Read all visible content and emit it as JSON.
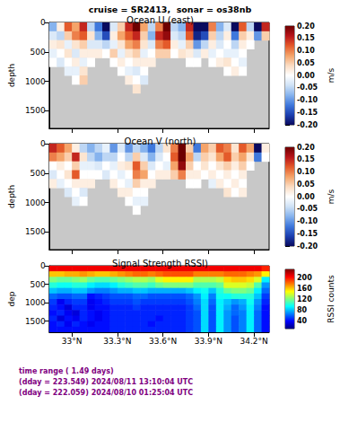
{
  "title": "cruise = SR2413,  sonar = os38nb",
  "footer": [
    "time range ( 1.49 days)",
    "(dday = 223.549) 2024/08/11 13:10:04 UTC",
    "(dday = 222.059) 2024/08/10 01:25:04 UTC"
  ],
  "chart_data": [
    {
      "type": "heatmap",
      "title": "Ocean U (east)",
      "ylabel": "depth",
      "tick_labels": "y",
      "x": [
        32.875,
        32.925,
        32.975,
        33.025,
        33.075,
        33.125,
        33.175,
        33.225,
        33.275,
        33.325,
        33.375,
        33.425,
        33.475,
        33.525,
        33.575,
        33.625,
        33.675,
        33.725,
        33.775,
        33.825,
        33.875,
        33.925,
        33.975,
        34.025,
        34.075,
        34.125,
        34.175,
        34.225,
        34.275
      ],
      "y": [
        75,
        225,
        375,
        525,
        675,
        825,
        975,
        1125
      ],
      "values": [
        [
          -0.08,
          0.02,
          0.12,
          0.08,
          0.15,
          -0.05,
          -0.12,
          -0.2,
          -0.03,
          0.05,
          0.15,
          0.2,
          0.08,
          -0.05,
          0.1,
          0.2,
          -0.05,
          -0.08,
          0.15,
          -0.2,
          -0.2,
          0.1,
          -0.08,
          -0.03,
          -0.2,
          0.12,
          -0.05,
          -0.2,
          0.15
        ],
        [
          -0.03,
          -0.05,
          0.05,
          0.1,
          0.12,
          0.03,
          -0.08,
          -0.15,
          0.02,
          0.08,
          0.12,
          0.15,
          0.05,
          -0.08,
          0.15,
          0.18,
          -0.03,
          -0.05,
          0.12,
          -0.18,
          -0.15,
          0.05,
          -0.05,
          0.02,
          -0.12,
          0.05,
          0.02,
          -0.1,
          0.05
        ],
        [
          0.02,
          0.03,
          -0.02,
          0.03,
          0.05,
          -0.03,
          -0.03,
          -0.05,
          -0.02,
          0.03,
          0.08,
          0.1,
          0.03,
          -0.03,
          0.1,
          0.12,
          0.02,
          -0.02,
          0.05,
          -0.1,
          -0.05,
          0.02,
          -0.03,
          0.0,
          -0.05,
          0.02,
          0.0,
          null,
          null
        ],
        [
          -0.02,
          0.0,
          0.03,
          -0.03,
          0.02,
          0.02,
          0.02,
          0.0,
          0.05,
          -0.02,
          0.03,
          0.05,
          -0.02,
          0.0,
          0.05,
          0.05,
          0.0,
          0.03,
          0.02,
          -0.03,
          0.02,
          -0.02,
          0.0,
          -0.02,
          -0.02,
          0.0,
          null,
          null,
          null
        ],
        [
          0.0,
          -0.03,
          0.0,
          0.02,
          -0.02,
          0.0,
          null,
          null,
          0.0,
          0.02,
          0.0,
          0.02,
          0.02,
          0.02,
          null,
          null,
          null,
          null,
          0.0,
          0.0,
          null,
          0.0,
          0.02,
          0.03,
          0.0,
          -0.02,
          null,
          null,
          null
        ],
        [
          null,
          null,
          -0.02,
          -0.02,
          0.03,
          null,
          null,
          null,
          null,
          0.0,
          -0.02,
          -0.03,
          0.0,
          null,
          null,
          null,
          null,
          null,
          null,
          null,
          null,
          null,
          null,
          0.0,
          0.02,
          0.0,
          null,
          null,
          null
        ],
        [
          null,
          null,
          null,
          0.0,
          0.05,
          null,
          null,
          null,
          null,
          null,
          0.02,
          0.0,
          -0.03,
          null,
          null,
          null,
          null,
          null,
          null,
          null,
          null,
          null,
          null,
          null,
          null,
          null,
          null,
          null,
          null
        ],
        [
          null,
          null,
          null,
          null,
          null,
          null,
          null,
          null,
          null,
          null,
          null,
          0.03,
          null,
          null,
          null,
          null,
          null,
          null,
          null,
          null,
          null,
          null,
          null,
          null,
          null,
          null,
          null,
          null,
          null
        ]
      ],
      "xlim": [
        32.85,
        34.3
      ],
      "xticks": [
        {
          "value": 33,
          "label": "33°N"
        },
        {
          "value": 33.3,
          "label": "33.3°N"
        },
        {
          "value": 33.6,
          "label": "33.6°N"
        },
        {
          "value": 33.9,
          "label": "33.9°N"
        },
        {
          "value": 34.2,
          "label": "34.2°N"
        }
      ],
      "ylim": [
        0,
        1800
      ],
      "yticks": [
        0,
        500,
        1000,
        1500
      ],
      "colorbar": {
        "label": "m/s",
        "range": [
          -0.2,
          0.2
        ],
        "ticks": [
          {
            "value": -0.2,
            "label": "-0.20"
          },
          -0.15,
          {
            "value": -0.1,
            "label": "-0.10"
          },
          -0.05,
          {
            "value": 0,
            "label": "0.00"
          },
          0.05,
          {
            "value": 0.1,
            "label": "0.10"
          },
          0.15,
          {
            "value": 0.2,
            "label": "0.20"
          }
        ]
      }
    },
    {
      "type": "heatmap",
      "title": "Ocean V (north)",
      "ylabel": "depth",
      "tick_labels": "y",
      "x": [
        32.875,
        32.925,
        32.975,
        33.025,
        33.075,
        33.125,
        33.175,
        33.225,
        33.275,
        33.325,
        33.375,
        33.425,
        33.475,
        33.525,
        33.575,
        33.625,
        33.675,
        33.725,
        33.775,
        33.825,
        33.875,
        33.925,
        33.975,
        34.025,
        34.075,
        34.125,
        34.175,
        34.225,
        34.275
      ],
      "y": [
        75,
        225,
        375,
        525,
        675,
        825,
        975,
        1125
      ],
      "values": [
        [
          0.15,
          0.12,
          0.08,
          0.02,
          -0.05,
          -0.08,
          -0.05,
          -0.02,
          -0.1,
          -0.03,
          -0.1,
          -0.05,
          -0.08,
          -0.12,
          -0.05,
          0.03,
          0.1,
          0.2,
          0.05,
          -0.12,
          0.08,
          0.05,
          0.12,
          0.1,
          0.03,
          0.12,
          0.08,
          -0.2,
          0.02
        ],
        [
          0.1,
          0.08,
          0.05,
          0.15,
          0.03,
          -0.05,
          -0.08,
          -0.05,
          -0.05,
          0.0,
          -0.05,
          0.05,
          -0.03,
          -0.08,
          -0.03,
          0.0,
          0.12,
          0.2,
          0.08,
          -0.05,
          0.05,
          0.03,
          0.08,
          0.12,
          0.05,
          0.08,
          0.03,
          -0.12,
          0.0
        ],
        [
          0.0,
          0.02,
          0.0,
          0.05,
          -0.02,
          -0.02,
          -0.03,
          0.0,
          -0.02,
          0.02,
          0.03,
          0.12,
          0.05,
          -0.03,
          0.0,
          -0.02,
          0.08,
          0.18,
          0.05,
          0.0,
          0.03,
          0.0,
          0.03,
          0.05,
          0.02,
          0.05,
          0.0,
          null,
          null
        ],
        [
          -0.03,
          0.0,
          0.03,
          0.12,
          0.0,
          0.0,
          0.0,
          -0.03,
          0.0,
          -0.02,
          0.0,
          0.1,
          0.08,
          0.0,
          0.02,
          0.02,
          0.05,
          0.1,
          0.02,
          0.02,
          0.0,
          0.02,
          0.0,
          0.02,
          0.0,
          0.02,
          null,
          null,
          null
        ],
        [
          0.02,
          -0.02,
          0.0,
          0.02,
          0.02,
          0.02,
          null,
          null,
          0.02,
          0.0,
          -0.02,
          0.05,
          0.02,
          0.02,
          null,
          null,
          null,
          null,
          0.0,
          0.0,
          null,
          -0.02,
          0.02,
          0.0,
          0.02,
          0.0,
          null,
          null,
          null
        ],
        [
          null,
          null,
          -0.03,
          0.0,
          -0.03,
          null,
          null,
          null,
          null,
          0.02,
          0.02,
          0.0,
          0.0,
          null,
          null,
          null,
          null,
          null,
          null,
          null,
          null,
          null,
          null,
          0.03,
          0.0,
          0.02,
          null,
          null,
          null
        ],
        [
          null,
          null,
          null,
          -0.02,
          0.0,
          null,
          null,
          null,
          null,
          null,
          0.0,
          -0.02,
          -0.02,
          null,
          null,
          null,
          null,
          null,
          null,
          null,
          null,
          null,
          null,
          null,
          null,
          null,
          null,
          null,
          null
        ],
        [
          null,
          null,
          null,
          null,
          null,
          null,
          null,
          null,
          null,
          null,
          null,
          0.0,
          null,
          null,
          null,
          null,
          null,
          null,
          null,
          null,
          null,
          null,
          null,
          null,
          null,
          null,
          null,
          null,
          null
        ]
      ],
      "xlim": [
        32.85,
        34.3
      ],
      "xticks": [
        {
          "value": 33,
          "label": "33°N"
        },
        {
          "value": 33.3,
          "label": "33.3°N"
        },
        {
          "value": 33.6,
          "label": "33.6°N"
        },
        {
          "value": 33.9,
          "label": "33.9°N"
        },
        {
          "value": 34.2,
          "label": "34.2°N"
        }
      ],
      "ylim": [
        0,
        1800
      ],
      "yticks": [
        0,
        500,
        1000,
        1500
      ],
      "colorbar": {
        "label": "m/s",
        "range": [
          -0.2,
          0.2
        ],
        "ticks": [
          {
            "value": -0.2,
            "label": "-0.20"
          },
          -0.15,
          {
            "value": -0.1,
            "label": "-0.10"
          },
          -0.05,
          {
            "value": 0,
            "label": "0.00"
          },
          0.05,
          {
            "value": 0.1,
            "label": "0.10"
          },
          0.15,
          {
            "value": 0.2,
            "label": "0.20"
          }
        ]
      }
    },
    {
      "type": "heatmap",
      "title": "Signal Strength RSSI)",
      "ylabel": "dep",
      "tick_labels": true,
      "x": [
        32.875,
        32.925,
        32.975,
        33.025,
        33.075,
        33.125,
        33.175,
        33.225,
        33.275,
        33.325,
        33.375,
        33.425,
        33.475,
        33.525,
        33.575,
        33.625,
        33.675,
        33.725,
        33.775,
        33.825,
        33.875,
        33.925,
        33.975,
        34.025,
        34.075,
        34.125,
        34.175,
        34.225,
        34.275
      ],
      "y": [
        75,
        225,
        375,
        525,
        675,
        825,
        975,
        1125,
        1275,
        1425,
        1575,
        1725
      ],
      "values": [
        [
          205,
          205,
          205,
          205,
          205,
          205,
          205,
          205,
          205,
          205,
          205,
          205,
          205,
          205,
          205,
          205,
          205,
          205,
          205,
          205,
          205,
          205,
          205,
          205,
          205,
          205,
          205,
          205,
          195
        ],
        [
          160,
          160,
          165,
          165,
          170,
          165,
          160,
          160,
          165,
          170,
          175,
          180,
          180,
          175,
          180,
          185,
          185,
          185,
          185,
          175,
          175,
          175,
          175,
          180,
          180,
          180,
          175,
          170,
          150
        ],
        [
          120,
          115,
          115,
          120,
          125,
          115,
          110,
          110,
          115,
          120,
          125,
          130,
          130,
          125,
          140,
          150,
          150,
          150,
          150,
          130,
          130,
          130,
          135,
          155,
          160,
          160,
          155,
          140,
          90
        ],
        [
          100,
          95,
          95,
          100,
          100,
          90,
          85,
          85,
          90,
          100,
          105,
          110,
          110,
          105,
          115,
          120,
          120,
          120,
          120,
          110,
          110,
          110,
          115,
          140,
          140,
          140,
          135,
          110,
          70
        ],
        [
          80,
          75,
          75,
          80,
          80,
          70,
          65,
          65,
          70,
          75,
          75,
          80,
          80,
          75,
          75,
          75,
          75,
          75,
          80,
          90,
          95,
          80,
          100,
          115,
          120,
          120,
          115,
          90,
          60
        ],
        [
          60,
          55,
          55,
          60,
          60,
          40,
          45,
          50,
          55,
          55,
          55,
          60,
          60,
          55,
          55,
          55,
          55,
          55,
          60,
          70,
          90,
          65,
          95,
          95,
          100,
          100,
          100,
          80,
          50
        ],
        [
          50,
          35,
          45,
          50,
          50,
          35,
          40,
          45,
          50,
          50,
          50,
          55,
          50,
          50,
          50,
          50,
          50,
          50,
          55,
          65,
          85,
          60,
          90,
          80,
          70,
          75,
          95,
          70,
          45
        ],
        [
          45,
          40,
          30,
          45,
          45,
          35,
          40,
          40,
          45,
          45,
          45,
          50,
          45,
          45,
          45,
          45,
          45,
          45,
          50,
          60,
          85,
          55,
          90,
          75,
          60,
          70,
          90,
          65,
          40
        ],
        [
          40,
          45,
          35,
          30,
          45,
          40,
          35,
          40,
          45,
          45,
          45,
          45,
          45,
          45,
          45,
          45,
          45,
          45,
          50,
          55,
          85,
          55,
          90,
          70,
          60,
          65,
          90,
          60,
          40
        ],
        [
          45,
          30,
          40,
          35,
          45,
          40,
          35,
          40,
          45,
          45,
          45,
          45,
          45,
          45,
          40,
          45,
          45,
          45,
          50,
          55,
          85,
          55,
          90,
          70,
          55,
          65,
          90,
          60,
          40
        ],
        [
          40,
          45,
          35,
          45,
          40,
          35,
          40,
          40,
          45,
          45,
          45,
          45,
          45,
          40,
          45,
          45,
          45,
          45,
          50,
          55,
          85,
          55,
          90,
          70,
          55,
          65,
          90,
          60,
          40
        ],
        [
          40,
          40,
          40,
          40,
          40,
          40,
          40,
          40,
          45,
          45,
          45,
          45,
          45,
          45,
          45,
          45,
          45,
          45,
          50,
          55,
          85,
          55,
          90,
          70,
          55,
          65,
          90,
          60,
          40
        ]
      ],
      "xlim": [
        32.85,
        34.3
      ],
      "xticks": [
        {
          "value": 33,
          "label": "33°N"
        },
        {
          "value": 33.3,
          "label": "33.3°N"
        },
        {
          "value": 33.6,
          "label": "33.6°N"
        },
        {
          "value": 33.9,
          "label": "33.9°N"
        },
        {
          "value": 34.2,
          "label": "34.2°N"
        }
      ],
      "ylim": [
        0,
        1800
      ],
      "yticks": [
        0,
        500,
        1000,
        1500
      ],
      "colorbar": {
        "label": "RSSI counts",
        "range": [
          10,
          230
        ],
        "ticks": [
          40,
          80,
          120,
          160,
          200
        ]
      }
    }
  ]
}
